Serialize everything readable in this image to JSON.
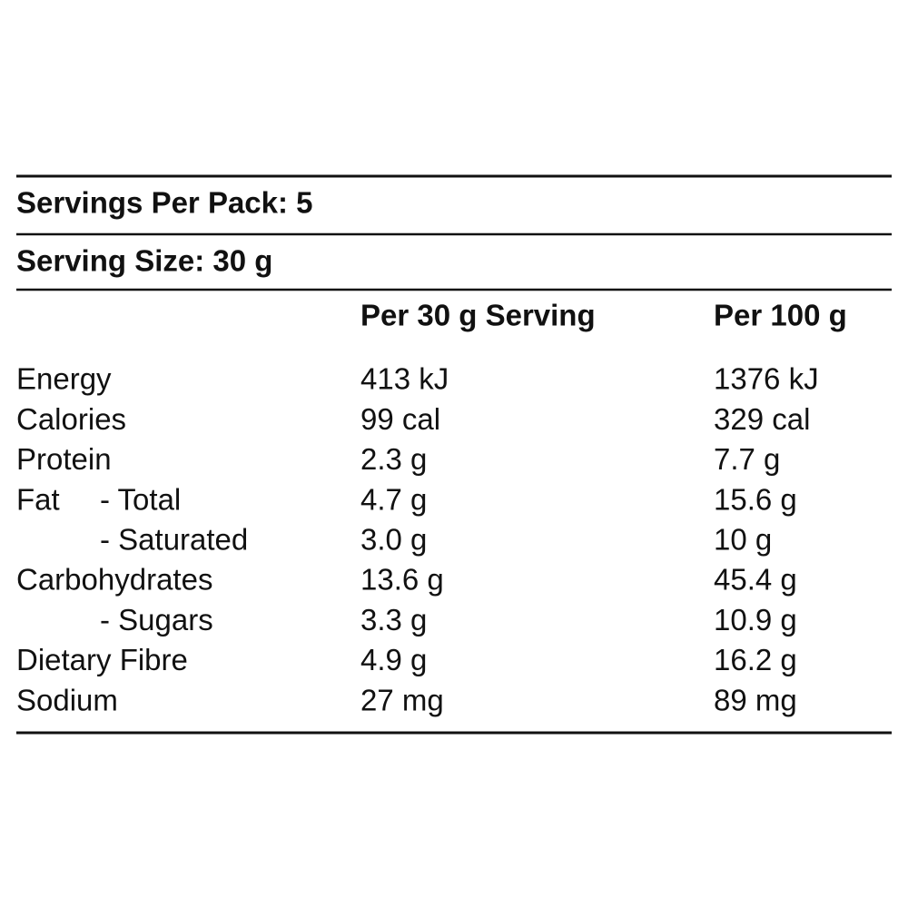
{
  "header": {
    "servings_per_pack": "Servings Per Pack: 5",
    "serving_size": "Serving Size: 30 g"
  },
  "table": {
    "columns": [
      "Per 30 g Serving",
      "Per 100 g"
    ],
    "rows": [
      {
        "label": "Energy",
        "cells": [
          "413 kJ",
          "1376 kJ"
        ]
      },
      {
        "label": "Calories",
        "cells": [
          "99 cal",
          "329 cal"
        ]
      },
      {
        "label": "Protein",
        "cells": [
          "2.3 g",
          "7.7 g"
        ]
      },
      {
        "label": "Fat",
        "sub": "- Total",
        "cells": [
          "4.7 g",
          "15.6 g"
        ]
      },
      {
        "sub": "- Saturated",
        "cells": [
          "3.0 g",
          "10 g"
        ]
      },
      {
        "label": "Carbohydrates",
        "cells": [
          "13.6 g",
          "45.4 g"
        ]
      },
      {
        "sub": "- Sugars",
        "cells": [
          "3.3 g",
          "10.9 g"
        ]
      },
      {
        "label": "Dietary Fibre",
        "cells": [
          "4.9 g",
          "16.2 g"
        ]
      },
      {
        "label": "Sodium",
        "cells": [
          "27 mg",
          "89 mg"
        ]
      }
    ]
  }
}
